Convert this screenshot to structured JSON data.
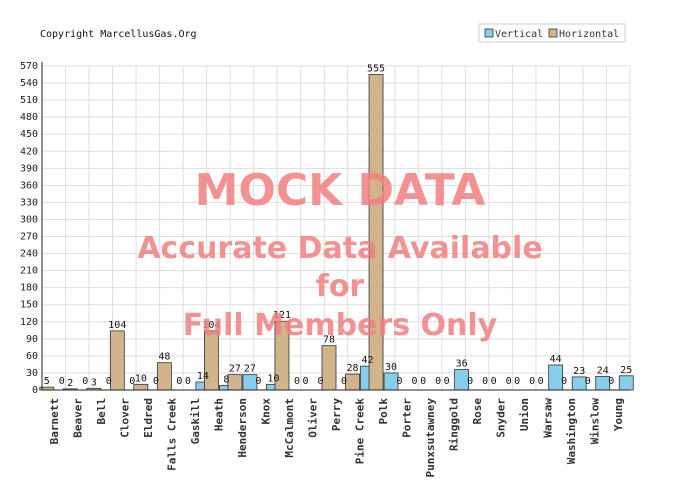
{
  "copyright": "Copyright MarcellusGas.Org",
  "watermark": {
    "line1": "MOCK DATA",
    "line2": "Accurate Data Available",
    "line3": "for",
    "line4": "Full Members Only"
  },
  "colors": {
    "vertical": "#87ceeb",
    "horizontal": "#d2b48c",
    "grid": "#dddddd",
    "watermark": "#f08080"
  },
  "chart_data": {
    "type": "bar",
    "categories": [
      "Barnett",
      "Beaver",
      "Bell",
      "Clover",
      "Eldred",
      "Falls Creek",
      "Gaskill",
      "Heath",
      "Henderson",
      "Knox",
      "McCalmont",
      "Oliver",
      "Perry",
      "Pine Creek",
      "Polk",
      "Porter",
      "Punxsutawney",
      "Ringgold",
      "Rose",
      "Snyder",
      "Union",
      "Warsaw",
      "Washington",
      "Winslow",
      "Young"
    ],
    "series": [
      {
        "name": "Vertical",
        "values": [
          0,
          0,
          0,
          0,
          0,
          0,
          14,
          8,
          27,
          10,
          0,
          0,
          0,
          42,
          30,
          0,
          0,
          36,
          0,
          0,
          0,
          44,
          23,
          24,
          25
        ]
      },
      {
        "name": "Horizontal",
        "values": [
          5,
          2,
          3,
          104,
          10,
          48,
          0,
          104,
          27,
          0,
          121,
          0,
          78,
          28,
          555,
          0,
          0,
          0,
          0,
          0,
          0,
          0,
          0,
          0,
          0
        ]
      }
    ],
    "ylim": [
      0,
      570
    ],
    "yticks": [
      0,
      30,
      60,
      90,
      120,
      150,
      180,
      210,
      240,
      270,
      300,
      330,
      360,
      390,
      420,
      450,
      480,
      510,
      540,
      570
    ],
    "grid": true,
    "legend_position": "top-right"
  }
}
